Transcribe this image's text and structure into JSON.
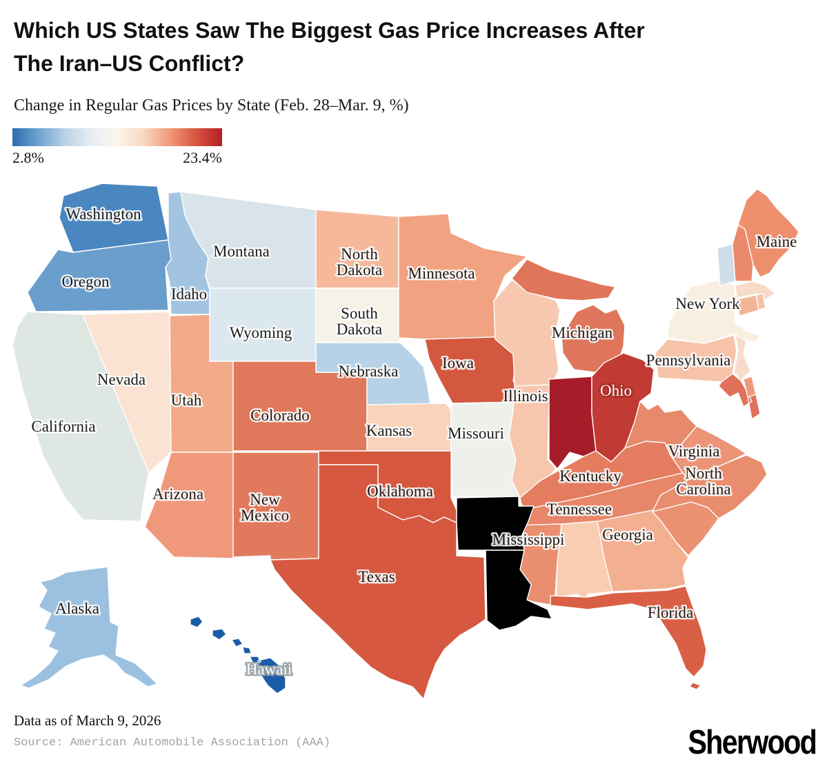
{
  "header": {
    "title_lines": [
      "Which US States Saw The Biggest Gas Price Increases After",
      "The Iran–US Conflict?"
    ],
    "subtitle": "Change in Regular Gas Prices by State (Feb. 28–Mar. 9, %)"
  },
  "legend": {
    "min_label": "2.8%",
    "max_label": "23.4%",
    "gradient": [
      "#2e6cb0",
      "#6ea3d0",
      "#b9d2e6",
      "#e7eef2",
      "#fbf5ec",
      "#f9d8c0",
      "#f0997a",
      "#d85540",
      "#b32025"
    ]
  },
  "footer": {
    "note": "Data as of March 9, 2026",
    "source": "Source: American Automobile Association (AAA)",
    "brand": "Sherwood"
  },
  "chart_data": {
    "type": "heatmap",
    "subtype": "us-choropleth-map",
    "title": "Change in Regular Gas Prices by State (Feb. 28–Mar. 9, %)",
    "unit": "%",
    "domain": [
      2.8,
      23.4
    ],
    "colorbar": {
      "min": "2.8%",
      "max": "23.4%",
      "scheme": "blue-white-red diverging"
    },
    "states": [
      {
        "abbr": "WA",
        "name": "Washington",
        "label_lines": [
          "Washington"
        ],
        "value_est": 5.5,
        "color": "#4a87c0"
      },
      {
        "abbr": "OR",
        "name": "Oregon",
        "label_lines": [
          "Oregon"
        ],
        "value_est": 6.5,
        "color": "#6a9ecd"
      },
      {
        "abbr": "ID",
        "name": "Idaho",
        "label_lines": [
          "Idaho"
        ],
        "value_est": 8.5,
        "color": "#a3c4e1"
      },
      {
        "abbr": "MT",
        "name": "Montana",
        "label_lines": [
          "Montana"
        ],
        "value_est": 11.5,
        "color": "#d9e4ea"
      },
      {
        "abbr": "WY",
        "name": "Wyoming",
        "label_lines": [
          "Wyoming"
        ],
        "value_est": 11.5,
        "color": "#dce8ef"
      },
      {
        "abbr": "NV",
        "name": "Nevada",
        "label_lines": [
          "Nevada"
        ],
        "value_est": 13.6,
        "color": "#fae3d2"
      },
      {
        "abbr": "CA",
        "name": "California",
        "label_lines": [
          "California"
        ],
        "value_est": 12.0,
        "color": "#dfe7e2"
      },
      {
        "abbr": "UT",
        "name": "Utah",
        "label_lines": [
          "Utah"
        ],
        "value_est": 17.3,
        "color": "#f3aa8a"
      },
      {
        "abbr": "AZ",
        "name": "Arizona",
        "label_lines": [
          "Arizona"
        ],
        "value_est": 17.8,
        "color": "#f0997a"
      },
      {
        "abbr": "CO",
        "name": "Colorado",
        "label_lines": [
          "Colorado"
        ],
        "value_est": 19.8,
        "color": "#e0795b"
      },
      {
        "abbr": "NM",
        "name": "New Mexico",
        "label_lines": [
          "New",
          "Mexico"
        ],
        "value_est": 19.8,
        "color": "#e17a5d"
      },
      {
        "abbr": "ND",
        "name": "North Dakota",
        "label_lines": [
          "North",
          "Dakota"
        ],
        "value_est": 16.0,
        "color": "#f6b89b"
      },
      {
        "abbr": "SD",
        "name": "South Dakota",
        "label_lines": [
          "South",
          "Dakota"
        ],
        "value_est": 13.0,
        "color": "#f7f2e7"
      },
      {
        "abbr": "NE",
        "name": "Nebraska",
        "label_lines": [
          "Nebraska"
        ],
        "value_est": 9.5,
        "color": "#b7d2e6"
      },
      {
        "abbr": "KS",
        "name": "Kansas",
        "label_lines": [
          "Kansas"
        ],
        "value_est": 14.8,
        "color": "#f9d3bb"
      },
      {
        "abbr": "OK",
        "name": "Oklahoma",
        "label_lines": [
          "Oklahoma"
        ],
        "value_est": 21.3,
        "color": "#d5573d"
      },
      {
        "abbr": "TX",
        "name": "Texas",
        "label_lines": [
          "Texas"
        ],
        "value_est": 21.2,
        "color": "#d65841"
      },
      {
        "abbr": "MN",
        "name": "Minnesota",
        "label_lines": [
          "Minnesota"
        ],
        "value_est": 17.0,
        "color": "#f1a281"
      },
      {
        "abbr": "IA",
        "name": "Iowa",
        "label_lines": [
          "Iowa"
        ],
        "value_est": 21.3,
        "color": "#d4573f"
      },
      {
        "abbr": "MO",
        "name": "Missouri",
        "label_lines": [
          "Missouri"
        ],
        "value_est": 12.5,
        "color": "#edf0eb"
      },
      {
        "abbr": "WI",
        "name": "Wisconsin",
        "label_lines": [],
        "value_est": 15.5,
        "color": "#f7c8af"
      },
      {
        "abbr": "IL",
        "name": "Illinois",
        "label_lines": [
          "Illinois"
        ],
        "value_est": 15.6,
        "color": "#f8c6ac"
      },
      {
        "abbr": "MI",
        "name": "Michigan",
        "label_lines": [
          "Michigan"
        ],
        "value_est": 19.5,
        "color": "#df755a"
      },
      {
        "abbr": "IN",
        "name": "Indiana",
        "label_lines": [],
        "value_est": 23.4,
        "color": "#a51d28"
      },
      {
        "abbr": "OH",
        "name": "Ohio",
        "label_lines": [
          "Ohio"
        ],
        "value_est": 22.3,
        "color": "#c13a33"
      },
      {
        "abbr": "KY",
        "name": "Kentucky",
        "label_lines": [
          "Kentucky"
        ],
        "value_est": 19.2,
        "color": "#e47d60"
      },
      {
        "abbr": "TN",
        "name": "Tennessee",
        "label_lines": [
          "Tennessee"
        ],
        "value_est": 19.0,
        "color": "#e78669"
      },
      {
        "abbr": "MS",
        "name": "Mississippi",
        "label_lines": [
          "Mississippi"
        ],
        "value_est": 18.5,
        "color": "#e98e6f"
      },
      {
        "abbr": "AL",
        "name": "Alabama",
        "label_lines": [],
        "value_est": 15.0,
        "color": "#f9cdb2"
      },
      {
        "abbr": "GA",
        "name": "Georgia",
        "label_lines": [
          "Georgia"
        ],
        "value_est": 16.5,
        "color": "#f3b091"
      },
      {
        "abbr": "FL",
        "name": "Florida",
        "label_lines": [
          "Florida"
        ],
        "value_est": 20.8,
        "color": "#d96046"
      },
      {
        "abbr": "SC",
        "name": "South Carolina",
        "label_lines": [],
        "value_est": 18.2,
        "color": "#eb9273"
      },
      {
        "abbr": "NC",
        "name": "North Carolina",
        "label_lines": [
          "North",
          "Carolina"
        ],
        "value_est": 18.5,
        "color": "#e88d6e"
      },
      {
        "abbr": "VA",
        "name": "Virginia",
        "label_lines": [
          "Virginia"
        ],
        "value_est": 18.2,
        "color": "#eb9478"
      },
      {
        "abbr": "WV",
        "name": "West Virginia",
        "label_lines": [],
        "value_est": 18.6,
        "color": "#e78a6c"
      },
      {
        "abbr": "MD",
        "name": "Maryland",
        "label_lines": [],
        "value_est": 19.8,
        "color": "#e0715a"
      },
      {
        "abbr": "DE",
        "name": "Delaware",
        "label_lines": [],
        "value_est": 18.0,
        "color": "#ee9a7c"
      },
      {
        "abbr": "NJ",
        "name": "New Jersey",
        "label_lines": [],
        "value_est": 14.3,
        "color": "#f8dccb"
      },
      {
        "abbr": "PA",
        "name": "Pennsylvania",
        "label_lines": [
          "Pennsylvania"
        ],
        "value_est": 16.2,
        "color": "#f6c3a9"
      },
      {
        "abbr": "NY",
        "name": "New York",
        "label_lines": [
          "New York"
        ],
        "value_est": 13.3,
        "color": "#f9efe1"
      },
      {
        "abbr": "VT",
        "name": "Vermont",
        "label_lines": [],
        "value_est": 10.5,
        "color": "#cddee9"
      },
      {
        "abbr": "NH",
        "name": "New Hampshire",
        "label_lines": [],
        "value_est": 18.8,
        "color": "#eb8a6b"
      },
      {
        "abbr": "ME",
        "name": "Maine",
        "label_lines": [
          "Maine"
        ],
        "value_est": 18.8,
        "color": "#ed8e6d"
      },
      {
        "abbr": "MA",
        "name": "Massachusetts",
        "label_lines": [],
        "value_est": 14.3,
        "color": "#f7dbc8"
      },
      {
        "abbr": "CT",
        "name": "Connecticut",
        "label_lines": [],
        "value_est": 17.0,
        "color": "#f2b496"
      },
      {
        "abbr": "RI",
        "name": "Rhode Island",
        "label_lines": [],
        "value_est": 15.3,
        "color": "#f5c2a9"
      },
      {
        "abbr": "AK",
        "name": "Alaska",
        "label_lines": [
          "Alaska"
        ],
        "value_est": 8.5,
        "color": "#9cc1e0"
      },
      {
        "abbr": "HI",
        "name": "Hawaii",
        "label_lines": [
          "Hawaii"
        ],
        "value_est": 2.8,
        "color": "#1b5ca8"
      }
    ]
  }
}
